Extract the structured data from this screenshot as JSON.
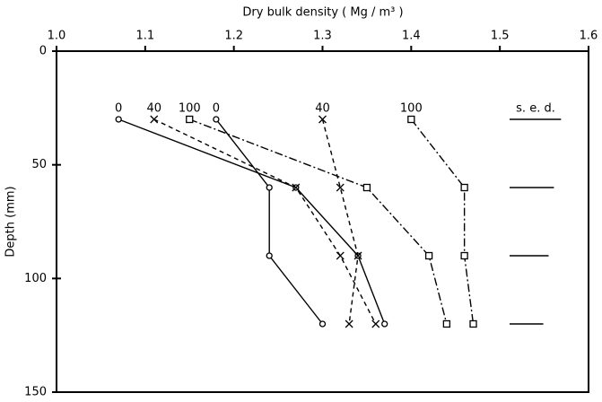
{
  "chart_data": {
    "type": "line",
    "x_label": "Dry bulk density ( Mg / m³ )",
    "y_label": "Depth (mm)",
    "y": [
      30,
      60,
      90,
      120
    ],
    "series": [
      {
        "name": "0",
        "color": "#000000",
        "marker": "circle",
        "dash": "solid",
        "values": [
          1.07,
          1.27,
          1.34,
          1.37
        ]
      },
      {
        "name": "40",
        "color": "#000000",
        "marker": "x",
        "dash": "dashed",
        "values": [
          1.11,
          1.27,
          1.32,
          1.36
        ]
      },
      {
        "name": "100",
        "color": "#000000",
        "marker": "square",
        "dash": "dashdot",
        "values": [
          1.15,
          1.35,
          1.42,
          1.44
        ]
      },
      {
        "name": "0",
        "color": "#000000",
        "marker": "circle",
        "dash": "solid",
        "values": [
          1.18,
          1.24,
          1.24,
          1.3
        ]
      },
      {
        "name": "40",
        "color": "#000000",
        "marker": "x",
        "dash": "dashed",
        "values": [
          1.3,
          1.32,
          1.34,
          1.33
        ]
      },
      {
        "name": "100",
        "color": "#000000",
        "marker": "square",
        "dash": "dashdot",
        "values": [
          1.4,
          1.46,
          1.46,
          1.47
        ]
      }
    ],
    "sed": {
      "label": "s. e. d.",
      "depths": [
        30,
        60,
        90,
        120
      ],
      "values": [
        0.058,
        0.05,
        0.044,
        0.038
      ]
    },
    "xlim": [
      1.0,
      1.6
    ],
    "xticks": [
      {
        "value": 1.0,
        "label": "1.0"
      },
      1.1,
      1.2,
      1.3,
      1.4,
      1.5,
      1.6
    ],
    "ylim": [
      0,
      150
    ],
    "yticks": [
      0,
      50,
      100,
      150
    ],
    "y_inverted": true
  }
}
